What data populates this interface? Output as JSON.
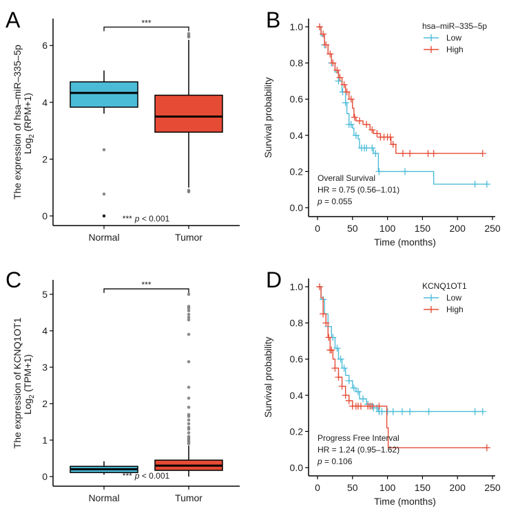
{
  "colors": {
    "low_normal": "#4bbcd8",
    "high_tumor": "#e64b35",
    "axis": "#000000",
    "outlier": "#777777"
  },
  "chart_data": [
    {
      "panel": "A",
      "type": "box",
      "categories": [
        "Normal",
        "Tumor"
      ],
      "ylabel_line1": "The expression of hsa–miR–335–5p",
      "ylabel_log": "Log",
      "ylabel_sub": "2",
      "ylabel_rest": " (RPM+1)",
      "ylim": [
        -0.3,
        7
      ],
      "yticks": [
        0,
        2,
        4,
        6
      ],
      "boxes": [
        {
          "name": "Normal",
          "whisker_low": 3.6,
          "q1": 3.83,
          "median": 4.33,
          "q3": 4.72,
          "whisker_high": 5.12,
          "outliers": [
            2.33,
            0.77,
            0
          ]
        },
        {
          "name": "Tumor",
          "whisker_low": 1.0,
          "q1": 2.95,
          "median": 3.5,
          "q3": 4.25,
          "whisker_high": 6.2,
          "outliers": [
            0.85,
            0.9,
            6.3,
            6.35,
            6.42
          ]
        }
      ],
      "bracket_y": 6.65,
      "significance": "***",
      "pvalue_stars": "***",
      "pvalue_p": "p",
      "pvalue_text": " < 0.001"
    },
    {
      "panel": "B",
      "type": "line",
      "subtype": "kaplan-meier",
      "xlabel": "Time (months)",
      "ylabel": "Survival probability",
      "xlim": [
        0,
        250
      ],
      "ylim": [
        0,
        1
      ],
      "xticks": [
        0,
        50,
        100,
        150,
        200,
        250
      ],
      "yticks": [
        "0.0",
        "0.2",
        "0.4",
        "0.6",
        "0.8",
        "1.0"
      ],
      "legend_title": "hsa–miR–335–5p",
      "legend_position": "top-right",
      "annotation": [
        "Overall Survival",
        "HR = 0.75 (0.56–1.01)"
      ],
      "p_label": "p",
      "p_value": " = 0.055",
      "series": [
        {
          "name": "Low",
          "steps": [
            [
              0,
              1
            ],
            [
              5,
              0.95
            ],
            [
              10,
              0.9
            ],
            [
              15,
              0.85
            ],
            [
              20,
              0.8
            ],
            [
              25,
              0.75
            ],
            [
              30,
              0.7
            ],
            [
              35,
              0.64
            ],
            [
              40,
              0.58
            ],
            [
              42,
              0.52
            ],
            [
              45,
              0.46
            ],
            [
              50,
              0.44
            ],
            [
              52,
              0.4
            ],
            [
              58,
              0.38
            ],
            [
              60,
              0.33
            ],
            [
              75,
              0.33
            ],
            [
              80,
              0.3
            ],
            [
              87,
              0.2
            ],
            [
              165,
              0.2
            ],
            [
              166,
              0.13
            ],
            [
              242,
              0.13
            ]
          ],
          "censored": [
            10,
            20,
            30,
            36,
            40,
            45,
            48,
            55,
            63,
            67,
            70,
            78,
            83,
            88,
            125,
            225,
            242
          ]
        },
        {
          "name": "High",
          "steps": [
            [
              0,
              1
            ],
            [
              5,
              0.96
            ],
            [
              10,
              0.9
            ],
            [
              15,
              0.85
            ],
            [
              20,
              0.8
            ],
            [
              25,
              0.76
            ],
            [
              30,
              0.72
            ],
            [
              35,
              0.68
            ],
            [
              40,
              0.64
            ],
            [
              45,
              0.6
            ],
            [
              50,
              0.55
            ],
            [
              52,
              0.5
            ],
            [
              55,
              0.48
            ],
            [
              65,
              0.46
            ],
            [
              75,
              0.43
            ],
            [
              80,
              0.41
            ],
            [
              90,
              0.39
            ],
            [
              105,
              0.35
            ],
            [
              112,
              0.3
            ],
            [
              236,
              0.3
            ]
          ],
          "censored": [
            3,
            8,
            12,
            18,
            22,
            28,
            32,
            38,
            42,
            48,
            53,
            60,
            70,
            78,
            85,
            90,
            95,
            100,
            104,
            108,
            122,
            132,
            158,
            166,
            236
          ]
        }
      ]
    },
    {
      "panel": "C",
      "type": "box",
      "categories": [
        "Normal",
        "Tumor"
      ],
      "ylabel_line1": "The expression of KCNQ1OT1",
      "ylabel_log": "Log",
      "ylabel_sub": "2",
      "ylabel_rest": " (TPM+1)",
      "ylim": [
        -0.25,
        5.4
      ],
      "yticks": [
        0,
        1,
        2,
        3,
        4,
        5
      ],
      "boxes": [
        {
          "name": "Normal",
          "whisker_low": 0.05,
          "q1": 0.11,
          "median": 0.2,
          "q3": 0.28,
          "whisker_high": 0.42,
          "outliers": []
        },
        {
          "name": "Tumor",
          "whisker_low": 0.0,
          "q1": 0.17,
          "median": 0.3,
          "q3": 0.45,
          "whisker_high": 0.85,
          "outliers": [
            0.9,
            0.95,
            1.0,
            1.05,
            1.1,
            1.2,
            1.3,
            1.35,
            1.45,
            1.55,
            1.65,
            1.7,
            1.9,
            2.15,
            2.45,
            3.15,
            3.9,
            4.3,
            4.37,
            4.45,
            4.55,
            4.62,
            4.67,
            5.0
          ]
        }
      ],
      "bracket_y": 5.15,
      "significance": "***",
      "pvalue_stars": "***",
      "pvalue_p": "p",
      "pvalue_text": " < 0.001"
    },
    {
      "panel": "D",
      "type": "line",
      "subtype": "kaplan-meier",
      "xlabel": "Time (months)",
      "ylabel": "Survival probability",
      "xlim": [
        0,
        250
      ],
      "ylim": [
        0,
        1
      ],
      "xticks": [
        0,
        50,
        100,
        150,
        200,
        250
      ],
      "yticks": [
        "0.0",
        "0.2",
        "0.4",
        "0.6",
        "0.8",
        "1.0"
      ],
      "legend_title": "KCNQ1OT1",
      "legend_position": "top-right",
      "annotation": [
        "Progress Free Interval",
        "HR = 1.24 (0.95–1.62)"
      ],
      "p_label": "p",
      "p_value": " = 0.106",
      "series": [
        {
          "name": "Low",
          "steps": [
            [
              0,
              1
            ],
            [
              5,
              0.93
            ],
            [
              10,
              0.85
            ],
            [
              15,
              0.78
            ],
            [
              20,
              0.72
            ],
            [
              25,
              0.66
            ],
            [
              30,
              0.6
            ],
            [
              35,
              0.55
            ],
            [
              40,
              0.51
            ],
            [
              45,
              0.48
            ],
            [
              50,
              0.44
            ],
            [
              55,
              0.42
            ],
            [
              60,
              0.38
            ],
            [
              70,
              0.35
            ],
            [
              80,
              0.33
            ],
            [
              87,
              0.31
            ],
            [
              236,
              0.31
            ]
          ],
          "censored": [
            8,
            15,
            22,
            28,
            33,
            38,
            45,
            52,
            58,
            65,
            72,
            80,
            85,
            88,
            92,
            100,
            108,
            121,
            132,
            159,
            225,
            236
          ]
        },
        {
          "name": "High",
          "steps": [
            [
              0,
              1
            ],
            [
              5,
              0.94
            ],
            [
              8,
              0.85
            ],
            [
              12,
              0.8
            ],
            [
              15,
              0.72
            ],
            [
              18,
              0.65
            ],
            [
              22,
              0.6
            ],
            [
              25,
              0.55
            ],
            [
              30,
              0.5
            ],
            [
              35,
              0.45
            ],
            [
              40,
              0.4
            ],
            [
              45,
              0.37
            ],
            [
              50,
              0.34
            ],
            [
              98,
              0.34
            ],
            [
              99,
              0.22
            ],
            [
              101,
              0.11
            ],
            [
              242,
              0.11
            ]
          ],
          "censored": [
            3,
            8,
            12,
            16,
            18,
            20,
            25,
            30,
            35,
            40,
            45,
            50,
            55,
            58,
            62,
            72,
            75,
            78,
            88,
            242
          ]
        }
      ]
    }
  ]
}
